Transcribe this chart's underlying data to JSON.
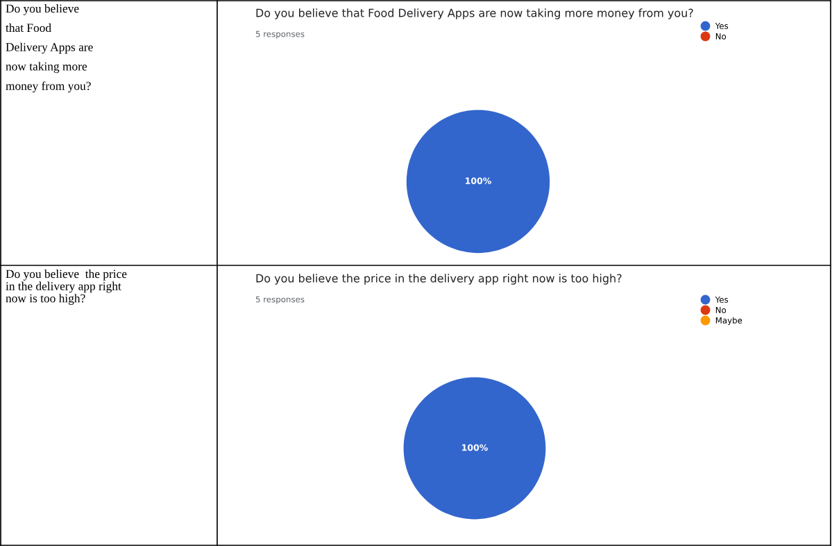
{
  "chart_data": [
    {
      "type": "pie",
      "title": "Do you believe that Food Delivery Apps are now taking more money from you?",
      "subtitle": "5 responses",
      "annotations": [
        "Do you believe that Food Delivery Apps are now taking more money from you?"
      ],
      "categories": [
        "Yes",
        "No"
      ],
      "values": [
        100,
        0
      ],
      "colors": [
        "#3366cc",
        "#dc3912"
      ],
      "value_labels": [
        "100%",
        null
      ],
      "legend": "right"
    },
    {
      "type": "pie",
      "title": "Do you believe the price in the delivery app right now is too high?",
      "subtitle": "5 responses",
      "annotations": [
        "Do you believe  the price in the delivery app right now is too high?"
      ],
      "categories": [
        "Yes",
        "No",
        "Maybe"
      ],
      "values": [
        100,
        0,
        0
      ],
      "colors": [
        "#3366cc",
        "#dc3912",
        "#ff9900"
      ],
      "value_labels": [
        "100%",
        null,
        null
      ],
      "legend": "right"
    }
  ]
}
